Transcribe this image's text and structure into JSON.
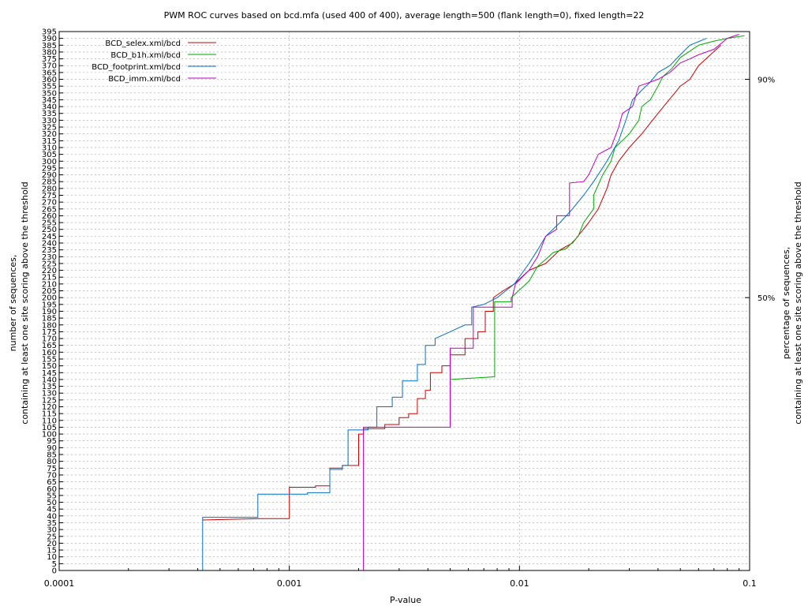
{
  "chart_data": {
    "type": "line",
    "title": "PWM ROC curves based on bcd.mfa (used 400 of 400), average length=500 (flank length=0), fixed length=22",
    "xlabel": "P-value",
    "ylabel_line1": "number of sequences,",
    "ylabel_line2": "containing at least one site scoring above the threshold",
    "y2label_line1": "percentage of sequences,",
    "y2label_line2": "containing at least one site scoring above the threshold",
    "xscale": "log",
    "xlim": [
      0.0001,
      0.1
    ],
    "ylim": [
      0,
      395
    ],
    "x_ticks": [
      0.0001,
      0.001,
      0.01,
      0.1
    ],
    "x_tick_labels": [
      "0.0001",
      "0.001",
      "0.01",
      "0.1"
    ],
    "y_ticks": [
      0,
      5,
      10,
      15,
      20,
      25,
      30,
      35,
      40,
      45,
      50,
      55,
      60,
      65,
      70,
      75,
      80,
      85,
      90,
      95,
      100,
      105,
      110,
      115,
      120,
      125,
      130,
      135,
      140,
      145,
      150,
      155,
      160,
      165,
      170,
      175,
      180,
      185,
      190,
      195,
      200,
      205,
      210,
      215,
      220,
      225,
      230,
      235,
      240,
      245,
      250,
      255,
      260,
      265,
      270,
      275,
      280,
      285,
      290,
      295,
      300,
      305,
      310,
      315,
      320,
      325,
      330,
      335,
      340,
      345,
      350,
      355,
      360,
      365,
      370,
      375,
      380,
      385,
      390,
      395
    ],
    "y2_ticks": [
      {
        "value": 200,
        "label": "50%"
      },
      {
        "value": 360,
        "label": "90%"
      }
    ],
    "grid": true,
    "legend_position": "top-left",
    "series": [
      {
        "name": "BCD_selex.xml/bcd",
        "color": "#cc0000",
        "points": [
          [
            0.00042,
            37
          ],
          [
            0.00075,
            38
          ],
          [
            0.001,
            38
          ],
          [
            0.001,
            61
          ],
          [
            0.0013,
            61
          ],
          [
            0.0013,
            62
          ],
          [
            0.0015,
            62
          ],
          [
            0.0015,
            75
          ],
          [
            0.0017,
            75
          ],
          [
            0.0017,
            77
          ],
          [
            0.002,
            77
          ],
          [
            0.002,
            100
          ],
          [
            0.0021,
            100
          ],
          [
            0.0021,
            104
          ],
          [
            0.0026,
            104
          ],
          [
            0.0026,
            107
          ],
          [
            0.003,
            107
          ],
          [
            0.003,
            112
          ],
          [
            0.0033,
            112
          ],
          [
            0.0033,
            115
          ],
          [
            0.0036,
            115
          ],
          [
            0.0036,
            126
          ],
          [
            0.0039,
            126
          ],
          [
            0.0039,
            132
          ],
          [
            0.0041,
            132
          ],
          [
            0.0041,
            145
          ],
          [
            0.0046,
            145
          ],
          [
            0.0046,
            150
          ],
          [
            0.005,
            150
          ],
          [
            0.005,
            158
          ],
          [
            0.0058,
            158
          ],
          [
            0.0058,
            170
          ],
          [
            0.0066,
            170
          ],
          [
            0.0066,
            175
          ],
          [
            0.0071,
            175
          ],
          [
            0.0071,
            190
          ],
          [
            0.0077,
            190
          ],
          [
            0.0077,
            200
          ],
          [
            0.0085,
            205
          ],
          [
            0.0095,
            210
          ],
          [
            0.011,
            220
          ],
          [
            0.013,
            225
          ],
          [
            0.015,
            235
          ],
          [
            0.017,
            240
          ],
          [
            0.02,
            255
          ],
          [
            0.022,
            265
          ],
          [
            0.024,
            280
          ],
          [
            0.025,
            290
          ],
          [
            0.027,
            300
          ],
          [
            0.03,
            310
          ],
          [
            0.034,
            320
          ],
          [
            0.04,
            335
          ],
          [
            0.05,
            355
          ],
          [
            0.055,
            360
          ],
          [
            0.06,
            370
          ],
          [
            0.075,
            385
          ]
        ]
      },
      {
        "name": "BCD_b1h.xml/bcd",
        "color": "#00aa00",
        "points": [
          [
            0.005,
            140
          ],
          [
            0.0078,
            142
          ],
          [
            0.0078,
            197
          ],
          [
            0.0092,
            197
          ],
          [
            0.0092,
            200
          ],
          [
            0.011,
            212
          ],
          [
            0.012,
            223
          ],
          [
            0.013,
            228
          ],
          [
            0.014,
            233
          ],
          [
            0.016,
            236
          ],
          [
            0.018,
            245
          ],
          [
            0.019,
            255
          ],
          [
            0.021,
            265
          ],
          [
            0.021,
            275
          ],
          [
            0.023,
            290
          ],
          [
            0.025,
            300
          ],
          [
            0.026,
            310
          ],
          [
            0.03,
            320
          ],
          [
            0.033,
            330
          ],
          [
            0.034,
            340
          ],
          [
            0.037,
            345
          ],
          [
            0.04,
            355
          ],
          [
            0.042,
            362
          ],
          [
            0.046,
            368
          ],
          [
            0.05,
            376
          ],
          [
            0.06,
            385
          ],
          [
            0.07,
            388
          ],
          [
            0.08,
            390
          ],
          [
            0.095,
            392
          ]
        ]
      },
      {
        "name": "BCD_footprint.xml/bcd",
        "color": "#0070c0",
        "points": [
          [
            0.00042,
            0
          ],
          [
            0.00042,
            39
          ],
          [
            0.00073,
            39
          ],
          [
            0.00073,
            56
          ],
          [
            0.0012,
            56
          ],
          [
            0.0012,
            57
          ],
          [
            0.0015,
            57
          ],
          [
            0.0015,
            74
          ],
          [
            0.0017,
            74
          ],
          [
            0.0017,
            77
          ],
          [
            0.0018,
            77
          ],
          [
            0.0018,
            103
          ],
          [
            0.0022,
            103
          ],
          [
            0.0022,
            105
          ],
          [
            0.0024,
            105
          ],
          [
            0.0024,
            120
          ],
          [
            0.0028,
            120
          ],
          [
            0.0028,
            127
          ],
          [
            0.0031,
            127
          ],
          [
            0.0031,
            139
          ],
          [
            0.0036,
            139
          ],
          [
            0.0036,
            151
          ],
          [
            0.0039,
            151
          ],
          [
            0.0039,
            165
          ],
          [
            0.0043,
            165
          ],
          [
            0.0043,
            170
          ],
          [
            0.005,
            175
          ],
          [
            0.0058,
            180
          ],
          [
            0.0062,
            180
          ],
          [
            0.0062,
            193
          ],
          [
            0.007,
            195
          ],
          [
            0.008,
            200
          ],
          [
            0.0095,
            210
          ],
          [
            0.011,
            225
          ],
          [
            0.012,
            235
          ],
          [
            0.013,
            245
          ],
          [
            0.015,
            255
          ],
          [
            0.017,
            265
          ],
          [
            0.019,
            275
          ],
          [
            0.021,
            285
          ],
          [
            0.024,
            300
          ],
          [
            0.027,
            315
          ],
          [
            0.029,
            330
          ],
          [
            0.031,
            345
          ],
          [
            0.034,
            352
          ],
          [
            0.037,
            358
          ],
          [
            0.04,
            365
          ],
          [
            0.045,
            370
          ],
          [
            0.05,
            378
          ],
          [
            0.055,
            385
          ],
          [
            0.065,
            390
          ]
        ]
      },
      {
        "name": "BCD_imm.xml/bcd",
        "color": "#c000c0",
        "points": [
          [
            0.0021,
            0
          ],
          [
            0.0021,
            105
          ],
          [
            0.005,
            105
          ],
          [
            0.005,
            163
          ],
          [
            0.0063,
            163
          ],
          [
            0.0063,
            193
          ],
          [
            0.0093,
            193
          ],
          [
            0.0093,
            200
          ],
          [
            0.0096,
            210
          ],
          [
            0.011,
            220
          ],
          [
            0.012,
            230
          ],
          [
            0.013,
            245
          ],
          [
            0.0145,
            250
          ],
          [
            0.0145,
            260
          ],
          [
            0.0165,
            260
          ],
          [
            0.0165,
            284
          ],
          [
            0.019,
            285
          ],
          [
            0.02,
            290
          ],
          [
            0.022,
            305
          ],
          [
            0.025,
            310
          ],
          [
            0.027,
            325
          ],
          [
            0.028,
            335
          ],
          [
            0.031,
            340
          ],
          [
            0.033,
            355
          ],
          [
            0.04,
            360
          ],
          [
            0.045,
            365
          ],
          [
            0.05,
            372
          ],
          [
            0.055,
            375
          ],
          [
            0.06,
            378
          ],
          [
            0.07,
            382
          ],
          [
            0.08,
            390
          ],
          [
            0.09,
            393
          ]
        ]
      }
    ]
  }
}
